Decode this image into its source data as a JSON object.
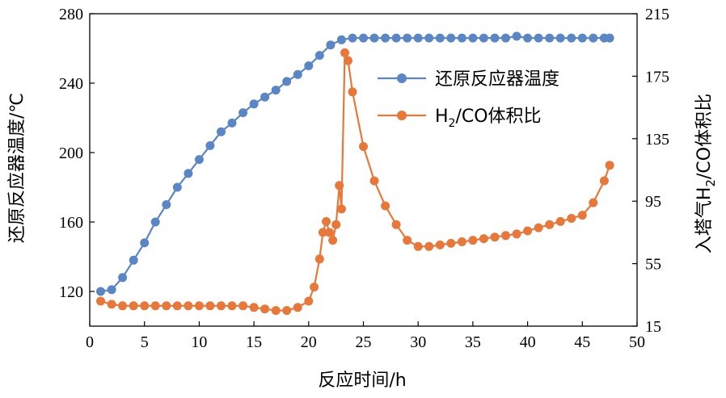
{
  "chart_data": {
    "type": "line",
    "x_axis": {
      "label": "反应时间/h",
      "range": [
        0,
        50
      ],
      "ticks": [
        0,
        5,
        10,
        15,
        20,
        25,
        30,
        35,
        40,
        45,
        50
      ]
    },
    "y_axis_left": {
      "label": "还原反应器温度/℃",
      "range": [
        100,
        280
      ],
      "ticks": [
        120,
        160,
        200,
        240,
        280
      ]
    },
    "y_axis_right": {
      "label": "入塔气H₂/CO体积比",
      "label_parts": {
        "pre": "入塔气H",
        "sub": "2",
        "post": "/CO体积比"
      },
      "range": [
        15,
        215
      ],
      "ticks": [
        15,
        55,
        95,
        135,
        175,
        215
      ]
    },
    "legend": {
      "placement": "top-right"
    },
    "series": [
      {
        "name": "还原反应器温度",
        "axis": "left",
        "color": "#5b86c5",
        "marker": "circle",
        "points": [
          [
            1,
            120
          ],
          [
            2,
            121
          ],
          [
            3,
            128
          ],
          [
            4,
            138
          ],
          [
            5,
            148
          ],
          [
            6,
            160
          ],
          [
            7,
            170
          ],
          [
            8,
            180
          ],
          [
            9,
            188
          ],
          [
            10,
            196
          ],
          [
            11,
            204
          ],
          [
            12,
            212
          ],
          [
            13,
            217
          ],
          [
            14,
            223
          ],
          [
            15,
            228
          ],
          [
            16,
            232
          ],
          [
            17,
            236
          ],
          [
            18,
            241
          ],
          [
            19,
            245
          ],
          [
            20,
            250
          ],
          [
            21,
            256
          ],
          [
            22,
            262
          ],
          [
            23,
            265
          ],
          [
            24,
            266
          ],
          [
            25,
            266
          ],
          [
            26,
            266
          ],
          [
            27,
            266
          ],
          [
            28,
            266
          ],
          [
            29,
            266
          ],
          [
            30,
            266
          ],
          [
            31,
            266
          ],
          [
            32,
            266
          ],
          [
            33,
            266
          ],
          [
            34,
            266
          ],
          [
            35,
            266
          ],
          [
            36,
            266
          ],
          [
            37,
            266
          ],
          [
            38,
            266
          ],
          [
            39,
            267
          ],
          [
            40,
            266
          ],
          [
            41,
            266
          ],
          [
            42,
            266
          ],
          [
            43,
            266
          ],
          [
            44,
            266
          ],
          [
            45,
            266
          ],
          [
            46,
            266
          ],
          [
            47,
            266
          ],
          [
            47.5,
            266
          ]
        ]
      },
      {
        "name": "H2/CO体积比",
        "name_parts": {
          "pre": "H",
          "sub": "2",
          "post": "/CO体积比"
        },
        "axis": "right",
        "color": "#e8783a",
        "marker": "circle",
        "points": [
          [
            1,
            31
          ],
          [
            2,
            29
          ],
          [
            3,
            28
          ],
          [
            4,
            28
          ],
          [
            5,
            28
          ],
          [
            6,
            28
          ],
          [
            7,
            28
          ],
          [
            8,
            28
          ],
          [
            9,
            28
          ],
          [
            10,
            28
          ],
          [
            11,
            28
          ],
          [
            12,
            28
          ],
          [
            13,
            28
          ],
          [
            14,
            28
          ],
          [
            15,
            27
          ],
          [
            16,
            26
          ],
          [
            17,
            25
          ],
          [
            18,
            25
          ],
          [
            19,
            27
          ],
          [
            20,
            31
          ],
          [
            20.5,
            40
          ],
          [
            21,
            58
          ],
          [
            21.3,
            75
          ],
          [
            21.6,
            82
          ],
          [
            21.9,
            75
          ],
          [
            22.2,
            70
          ],
          [
            22.5,
            80
          ],
          [
            22.8,
            105
          ],
          [
            23.0,
            90
          ],
          [
            23.3,
            190
          ],
          [
            23.6,
            185
          ],
          [
            24,
            165
          ],
          [
            25,
            130
          ],
          [
            26,
            108
          ],
          [
            27,
            92
          ],
          [
            28,
            80
          ],
          [
            29,
            70
          ],
          [
            30,
            66
          ],
          [
            31,
            66
          ],
          [
            32,
            67
          ],
          [
            33,
            68
          ],
          [
            34,
            69
          ],
          [
            35,
            70
          ],
          [
            36,
            71
          ],
          [
            37,
            72
          ],
          [
            38,
            73
          ],
          [
            39,
            74
          ],
          [
            40,
            76
          ],
          [
            41,
            78
          ],
          [
            42,
            80
          ],
          [
            43,
            82
          ],
          [
            44,
            84
          ],
          [
            45,
            86
          ],
          [
            46,
            94
          ],
          [
            47,
            108
          ],
          [
            47.5,
            118
          ]
        ]
      }
    ]
  }
}
